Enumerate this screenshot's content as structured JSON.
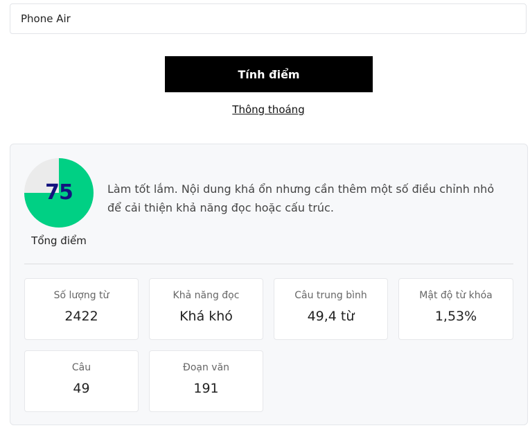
{
  "input": {
    "value": "Phone Air"
  },
  "calculate_button": "Tính điểm",
  "info_link": "Thông thoáng",
  "result": {
    "score": "75",
    "score_fraction": 0.75,
    "score_label": "Tổng điểm",
    "feedback": "Làm tốt lắm. Nội dung khá ổn nhưng cần thêm một số điều chỉnh nhỏ để cải thiện khả năng đọc hoặc cấu trúc.",
    "colors": {
      "fill": "#00d084",
      "rest": "#ebebeb",
      "score_text": "#13137e"
    },
    "stats": [
      {
        "label": "Số lượng từ",
        "value": "2422"
      },
      {
        "label": "Khả năng đọc",
        "value": "Khá khó"
      },
      {
        "label": "Câu trung bình",
        "value": "49,4 từ"
      },
      {
        "label": "Mật độ từ khóa",
        "value": "1,53%"
      },
      {
        "label": "Câu",
        "value": "49"
      },
      {
        "label": "Đoạn văn",
        "value": "191"
      }
    ]
  }
}
